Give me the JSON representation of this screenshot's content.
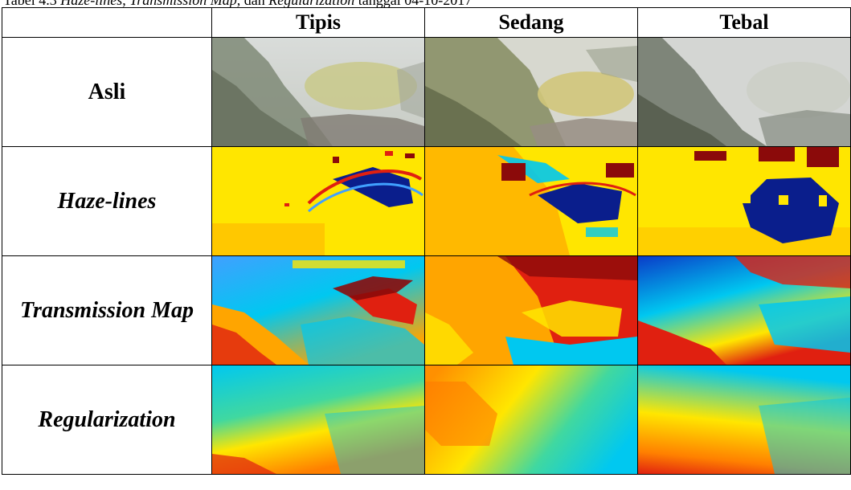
{
  "caption": {
    "prefix": "Tabel 4.3 ",
    "term1": "Haze-lines",
    "sep1": ", ",
    "term2": "Transmission Map",
    "sep2": ", dan ",
    "term3": "Regularization",
    "suffix": " tanggal 04-10-2017"
  },
  "columns": [
    "Tipis",
    "Sedang",
    "Tebal"
  ],
  "rows": [
    {
      "label": "Asli",
      "italic": false,
      "kind": "original"
    },
    {
      "label": "Haze-lines",
      "italic": true,
      "kind": "haze-lines"
    },
    {
      "label": "Transmission Map",
      "italic": true,
      "kind": "transmission-map"
    },
    {
      "label": "Regularization",
      "italic": true,
      "kind": "regularization"
    }
  ],
  "colors": {
    "yellow": "#FFE600",
    "orange": "#FFA500",
    "dark_blue": "#0A1E8C",
    "dark_red": "#8B0A0A",
    "red": "#E02010",
    "cyan": "#00C8F0",
    "light_blue": "#40A0FF"
  }
}
